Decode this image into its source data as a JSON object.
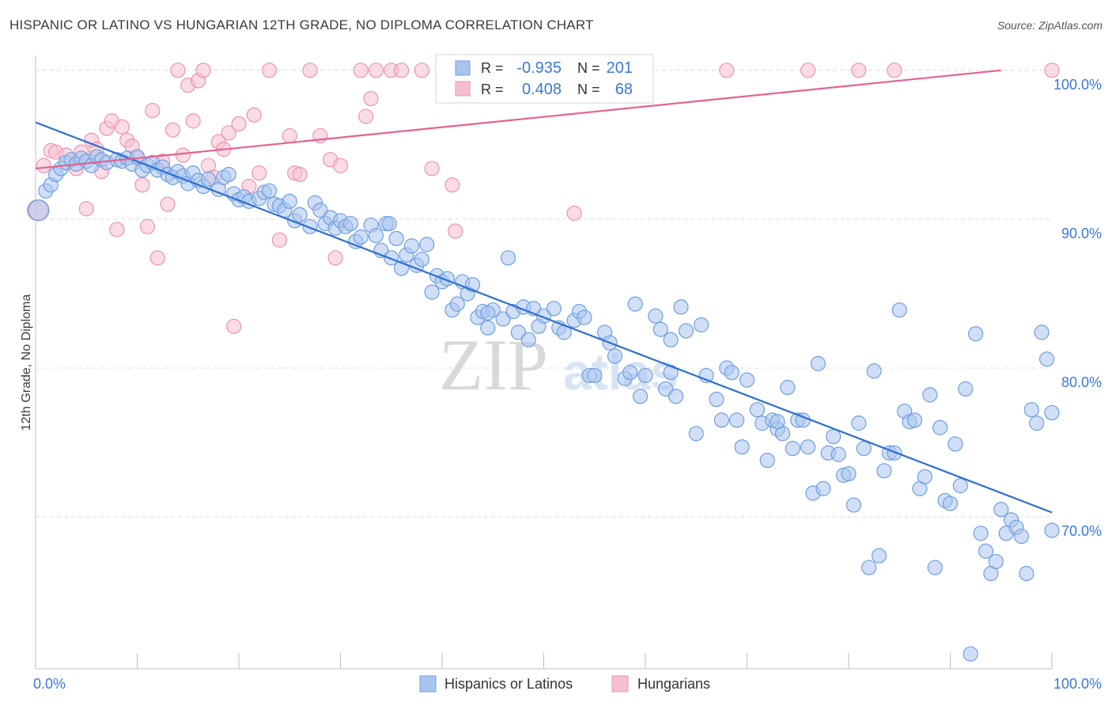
{
  "title": "HISPANIC OR LATINO VS HUNGARIAN 12TH GRADE, NO DIPLOMA CORRELATION CHART",
  "source": "Source: ZipAtlas.com",
  "watermark": {
    "zip": "ZIP",
    "atlas": "atlas"
  },
  "colors": {
    "blue_fill": "#a9c4ee",
    "blue_stroke": "#6f9ee0",
    "blue_line": "#2e6fd0",
    "pink_fill": "#f6bfd0",
    "pink_stroke": "#ec93b0",
    "pink_line": "#e5628e",
    "axis_text": "#3c78d8",
    "grid": "#dcdcdc"
  },
  "stats_box": {
    "rows": [
      {
        "r_label": "R =",
        "r_value": "-0.935",
        "n_label": "N =",
        "n_value": "201"
      },
      {
        "r_label": "R =",
        "r_value": "0.408",
        "n_label": "N =",
        "n_value": "68"
      }
    ]
  },
  "chart_data": {
    "type": "scatter",
    "title": "HISPANIC OR LATINO VS HUNGARIAN 12TH GRADE, NO DIPLOMA CORRELATION CHART",
    "xlabel": "",
    "ylabel": "12th Grade, No Diploma",
    "xlim": [
      0,
      100
    ],
    "ylim": [
      59.8,
      101
    ],
    "x_tick_labels": [
      "0.0%",
      "100.0%"
    ],
    "y_ticks": [
      70,
      80,
      90,
      100
    ],
    "y_tick_labels": [
      "70.0%",
      "80.0%",
      "90.0%",
      "100.0%"
    ],
    "grid": true,
    "legend_position": "bottom",
    "series": [
      {
        "name": "Hispanics or Latinos",
        "color": "#a9c4ee",
        "trendline": {
          "x": [
            0,
            100
          ],
          "y": [
            96.5,
            70.3
          ]
        },
        "points": [
          [
            0.3,
            90.6
          ],
          [
            1,
            91.9
          ],
          [
            1.5,
            92.3
          ],
          [
            2,
            93
          ],
          [
            2.5,
            93.4
          ],
          [
            3,
            93.8
          ],
          [
            3.5,
            94
          ],
          [
            4,
            93.7
          ],
          [
            4.5,
            94.1
          ],
          [
            5,
            93.9
          ],
          [
            5.5,
            93.6
          ],
          [
            6,
            94.2
          ],
          [
            6.5,
            94
          ],
          [
            7,
            93.8
          ],
          [
            8,
            94
          ],
          [
            8.5,
            93.9
          ],
          [
            9,
            94.1
          ],
          [
            9.5,
            93.7
          ],
          [
            10,
            94.2
          ],
          [
            10.5,
            93.3
          ],
          [
            11,
            93.6
          ],
          [
            11.5,
            93.8
          ],
          [
            12,
            93.3
          ],
          [
            12.5,
            93.5
          ],
          [
            13,
            93
          ],
          [
            13.5,
            92.8
          ],
          [
            14,
            93.2
          ],
          [
            14.5,
            92.9
          ],
          [
            15,
            92.4
          ],
          [
            15.5,
            93.1
          ],
          [
            16,
            92.6
          ],
          [
            16.5,
            92.2
          ],
          [
            17,
            92.7
          ],
          [
            18,
            92
          ],
          [
            18.5,
            92.8
          ],
          [
            19,
            93
          ],
          [
            19.5,
            91.7
          ],
          [
            20,
            91.3
          ],
          [
            20.5,
            91.5
          ],
          [
            21,
            91.2
          ],
          [
            22,
            91.4
          ],
          [
            22.5,
            91.8
          ],
          [
            23,
            91.9
          ],
          [
            23.5,
            91
          ],
          [
            24,
            90.9
          ],
          [
            24.5,
            90.6
          ],
          [
            25,
            91.2
          ],
          [
            25.5,
            89.9
          ],
          [
            26,
            90.3
          ],
          [
            27,
            89.5
          ],
          [
            27.5,
            91.1
          ],
          [
            28,
            90.6
          ],
          [
            28.5,
            89.7
          ],
          [
            29,
            90.1
          ],
          [
            29.5,
            89.4
          ],
          [
            30,
            89.9
          ],
          [
            30.5,
            89.5
          ],
          [
            31,
            89.7
          ],
          [
            31.5,
            88.5
          ],
          [
            32,
            88.8
          ],
          [
            33,
            89.6
          ],
          [
            33.5,
            88.9
          ],
          [
            34,
            87.9
          ],
          [
            34.5,
            89.7
          ],
          [
            35,
            87.4
          ],
          [
            35.5,
            88.7
          ],
          [
            36,
            86.7
          ],
          [
            36.5,
            87.6
          ],
          [
            37,
            88.2
          ],
          [
            37.5,
            86.9
          ],
          [
            38,
            87.3
          ],
          [
            38.5,
            88.3
          ],
          [
            39,
            85.1
          ],
          [
            39.5,
            86.2
          ],
          [
            40,
            85.8
          ],
          [
            40.5,
            86
          ],
          [
            41,
            83.9
          ],
          [
            41.5,
            84.3
          ],
          [
            42,
            85.8
          ],
          [
            42.5,
            85
          ],
          [
            43,
            85.6
          ],
          [
            43.5,
            83.4
          ],
          [
            44,
            83.8
          ],
          [
            44.5,
            82.7
          ],
          [
            45,
            83.9
          ],
          [
            46,
            83.3
          ],
          [
            46.5,
            87.4
          ],
          [
            47,
            83.8
          ],
          [
            47.5,
            82.4
          ],
          [
            48,
            84.1
          ],
          [
            48.5,
            81.9
          ],
          [
            49,
            84
          ],
          [
            49.5,
            82.8
          ],
          [
            50,
            83.5
          ],
          [
            51,
            84
          ],
          [
            51.5,
            82.7
          ],
          [
            52,
            82.4
          ],
          [
            53,
            83.2
          ],
          [
            53.5,
            83.8
          ],
          [
            54,
            83.4
          ],
          [
            54.5,
            79.5
          ],
          [
            55,
            79.5
          ],
          [
            56,
            82.4
          ],
          [
            56.5,
            81.7
          ],
          [
            57,
            80.8
          ],
          [
            58,
            79.3
          ],
          [
            58.5,
            79.7
          ],
          [
            59,
            84.3
          ],
          [
            59.5,
            78.1
          ],
          [
            60,
            79.5
          ],
          [
            61,
            83.5
          ],
          [
            61.5,
            82.6
          ],
          [
            62,
            78.6
          ],
          [
            62.5,
            81.9
          ],
          [
            63,
            78.1
          ],
          [
            63.5,
            84.1
          ],
          [
            64,
            82.5
          ],
          [
            65,
            75.6
          ],
          [
            65.5,
            82.9
          ],
          [
            66,
            79.5
          ],
          [
            67,
            77.9
          ],
          [
            67.5,
            76.5
          ],
          [
            68,
            80
          ],
          [
            68.5,
            79.7
          ],
          [
            69,
            76.5
          ],
          [
            69.5,
            74.7
          ],
          [
            70,
            79.2
          ],
          [
            71,
            77.2
          ],
          [
            71.5,
            76.3
          ],
          [
            72,
            73.8
          ],
          [
            72.5,
            76.5
          ],
          [
            73,
            75.9
          ],
          [
            73.5,
            75.6
          ],
          [
            74,
            78.7
          ],
          [
            74.5,
            74.6
          ],
          [
            75,
            76.5
          ],
          [
            75.5,
            76.5
          ],
          [
            76,
            74.7
          ],
          [
            76.5,
            71.6
          ],
          [
            77,
            80.3
          ],
          [
            77.5,
            71.9
          ],
          [
            78,
            74.3
          ],
          [
            78.5,
            75.4
          ],
          [
            79,
            74.2
          ],
          [
            79.5,
            72.8
          ],
          [
            80,
            72.9
          ],
          [
            80.5,
            70.8
          ],
          [
            81,
            76.3
          ],
          [
            81.5,
            74.6
          ],
          [
            82,
            66.6
          ],
          [
            82.5,
            79.8
          ],
          [
            83,
            67.4
          ],
          [
            83.5,
            73.1
          ],
          [
            84,
            74.3
          ],
          [
            84.5,
            74.3
          ],
          [
            85,
            83.9
          ],
          [
            85.5,
            77.1
          ],
          [
            86,
            76.4
          ],
          [
            86.5,
            76.5
          ],
          [
            87,
            71.9
          ],
          [
            87.5,
            72.7
          ],
          [
            88,
            78.2
          ],
          [
            88.5,
            66.6
          ],
          [
            89,
            76
          ],
          [
            89.5,
            71.1
          ],
          [
            90,
            70.9
          ],
          [
            90.5,
            74.9
          ],
          [
            91,
            72.1
          ],
          [
            91.5,
            78.6
          ],
          [
            92,
            60.8
          ],
          [
            92.5,
            82.3
          ],
          [
            93,
            68.9
          ],
          [
            93.5,
            67.7
          ],
          [
            94,
            66.2
          ],
          [
            94.5,
            67
          ],
          [
            95,
            70.5
          ],
          [
            95.5,
            68.9
          ],
          [
            96,
            69.8
          ],
          [
            96.5,
            69.3
          ],
          [
            97,
            68.7
          ],
          [
            97.5,
            66.2
          ],
          [
            98,
            77.2
          ],
          [
            98.5,
            76.3
          ],
          [
            99,
            82.4
          ],
          [
            99.5,
            80.6
          ],
          [
            100,
            77
          ],
          [
            100,
            69.1
          ],
          [
            44.5,
            83.7
          ],
          [
            62.5,
            79.7
          ],
          [
            73,
            76.4
          ],
          [
            34.8,
            89.7
          ]
        ]
      },
      {
        "name": "Hungarians",
        "color": "#f6bfd0",
        "trendline": {
          "x": [
            0,
            95
          ],
          "y": [
            93.4,
            100
          ]
        },
        "points": [
          [
            0.2,
            90.6
          ],
          [
            0.8,
            93.6
          ],
          [
            1.5,
            94.6
          ],
          [
            2,
            94.5
          ],
          [
            3,
            94.3
          ],
          [
            4,
            93.4
          ],
          [
            4.5,
            94.5
          ],
          [
            5,
            90.7
          ],
          [
            5.5,
            95.3
          ],
          [
            6,
            94.7
          ],
          [
            6.5,
            93.2
          ],
          [
            7,
            96.1
          ],
          [
            7.5,
            96.6
          ],
          [
            8,
            89.3
          ],
          [
            8.5,
            96.2
          ],
          [
            9,
            95.3
          ],
          [
            9.5,
            94.9
          ],
          [
            10,
            94.1
          ],
          [
            10.5,
            92.3
          ],
          [
            11,
            89.5
          ],
          [
            11.5,
            97.3
          ],
          [
            12,
            87.4
          ],
          [
            12.5,
            93.9
          ],
          [
            13,
            91
          ],
          [
            13.5,
            96
          ],
          [
            14,
            100
          ],
          [
            14.5,
            94.3
          ],
          [
            15,
            99
          ],
          [
            15.5,
            96.6
          ],
          [
            16,
            99.3
          ],
          [
            16.5,
            100
          ],
          [
            17,
            93.6
          ],
          [
            17.5,
            92.8
          ],
          [
            18,
            95.2
          ],
          [
            18.5,
            94.7
          ],
          [
            19,
            95.8
          ],
          [
            19.5,
            82.8
          ],
          [
            20,
            96.4
          ],
          [
            21,
            92.2
          ],
          [
            21.5,
            97
          ],
          [
            22,
            93.1
          ],
          [
            23,
            100
          ],
          [
            24,
            88.6
          ],
          [
            25,
            95.6
          ],
          [
            25.5,
            93.1
          ],
          [
            26,
            93
          ],
          [
            27,
            100
          ],
          [
            28,
            95.6
          ],
          [
            29,
            94
          ],
          [
            29.5,
            87.4
          ],
          [
            30,
            93.6
          ],
          [
            32,
            100
          ],
          [
            32.5,
            96.9
          ],
          [
            33,
            98.1
          ],
          [
            33.5,
            100
          ],
          [
            35,
            100
          ],
          [
            36,
            100
          ],
          [
            38,
            100
          ],
          [
            39,
            93.4
          ],
          [
            41,
            92.3
          ],
          [
            41.3,
            89.2
          ],
          [
            51,
            100
          ],
          [
            53,
            90.4
          ],
          [
            68,
            100
          ],
          [
            76,
            100
          ],
          [
            81,
            100
          ],
          [
            84.5,
            100
          ],
          [
            100,
            100
          ]
        ]
      }
    ]
  }
}
